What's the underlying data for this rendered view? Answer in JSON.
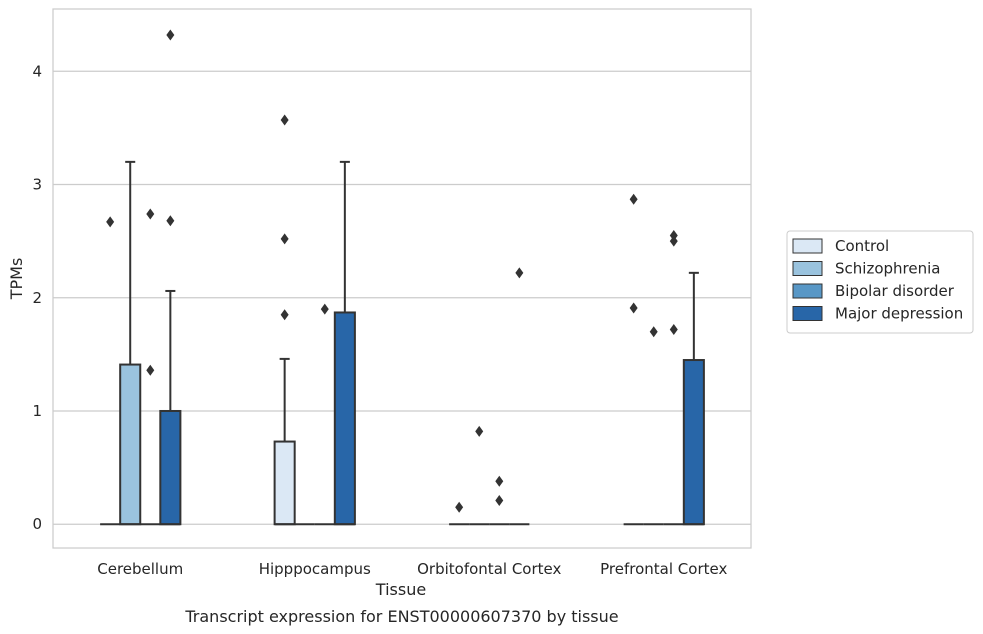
{
  "chart_data": {
    "type": "box",
    "title": "",
    "caption": "Transcript expression for ENST00000607370 by tissue",
    "xlabel": "Tissue",
    "ylabel": "TPMs",
    "ylim": [
      -0.21,
      4.55
    ],
    "yticks": [
      0,
      1,
      2,
      3,
      4
    ],
    "grid": "horizontal",
    "legend_position": "right",
    "categories": [
      "Cerebellum",
      "Hipppocampus",
      "Orbitofontal Cortex",
      "Prefrontal Cortex"
    ],
    "series": [
      {
        "name": "Control",
        "color": "#dbe8f5",
        "boxes": [
          {
            "q1": 0,
            "median": 0,
            "q3": 0,
            "whisker_low": 0,
            "whisker_high": 0,
            "outliers": [
              2.67
            ]
          },
          {
            "q1": 0,
            "median": 0,
            "q3": 0.73,
            "whisker_low": 0,
            "whisker_high": 1.46,
            "outliers": [
              1.85,
              2.52,
              3.57
            ]
          },
          {
            "q1": 0,
            "median": 0,
            "q3": 0,
            "whisker_low": 0,
            "whisker_high": 0,
            "outliers": [
              0.15
            ]
          },
          {
            "q1": 0,
            "median": 0,
            "q3": 0,
            "whisker_low": 0,
            "whisker_high": 0,
            "outliers": [
              1.91,
              2.87
            ]
          }
        ]
      },
      {
        "name": "Schizophrenia",
        "color": "#9ac3de",
        "boxes": [
          {
            "q1": 0,
            "median": 0,
            "q3": 1.41,
            "whisker_low": 0,
            "whisker_high": 3.2,
            "outliers": []
          },
          {
            "q1": 0,
            "median": 0,
            "q3": 0,
            "whisker_low": 0,
            "whisker_high": 0,
            "outliers": []
          },
          {
            "q1": 0,
            "median": 0,
            "q3": 0,
            "whisker_low": 0,
            "whisker_high": 0,
            "outliers": [
              0.82
            ]
          },
          {
            "q1": 0,
            "median": 0,
            "q3": 0,
            "whisker_low": 0,
            "whisker_high": 0,
            "outliers": [
              1.7
            ]
          }
        ]
      },
      {
        "name": "Bipolar disorder",
        "color": "#5897c6",
        "boxes": [
          {
            "q1": 0,
            "median": 0,
            "q3": 0,
            "whisker_low": 0,
            "whisker_high": 0,
            "outliers": [
              1.36,
              2.74
            ]
          },
          {
            "q1": 0,
            "median": 0,
            "q3": 0,
            "whisker_low": 0,
            "whisker_high": 0,
            "outliers": [
              1.9
            ]
          },
          {
            "q1": 0,
            "median": 0,
            "q3": 0,
            "whisker_low": 0,
            "whisker_high": 0,
            "outliers": [
              0.21,
              0.38
            ]
          },
          {
            "q1": 0,
            "median": 0,
            "q3": 0,
            "whisker_low": 0,
            "whisker_high": 0,
            "outliers": [
              1.72,
              2.5,
              2.55
            ]
          }
        ]
      },
      {
        "name": "Major depression",
        "color": "#2866a8",
        "boxes": [
          {
            "q1": 0,
            "median": 0,
            "q3": 1.0,
            "whisker_low": 0,
            "whisker_high": 2.06,
            "outliers": [
              2.68,
              4.32
            ]
          },
          {
            "q1": 0,
            "median": 0,
            "q3": 1.87,
            "whisker_low": 0,
            "whisker_high": 3.2,
            "outliers": []
          },
          {
            "q1": 0,
            "median": 0,
            "q3": 0,
            "whisker_low": 0,
            "whisker_high": 0,
            "outliers": [
              2.22
            ]
          },
          {
            "q1": 0,
            "median": 0,
            "q3": 1.45,
            "whisker_low": 0,
            "whisker_high": 2.22,
            "outliers": []
          }
        ]
      }
    ]
  }
}
